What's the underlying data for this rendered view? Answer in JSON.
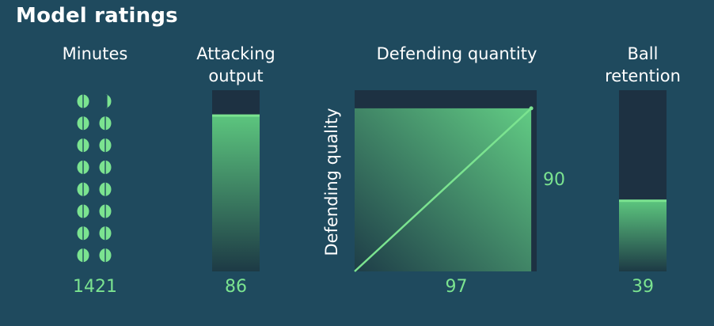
{
  "title": "Model ratings",
  "colors": {
    "background": "#1f4a5e",
    "panel": "#1d3142",
    "accent": "#7be390",
    "gradient_top": "#5cc57e",
    "gradient_bottom": "#1d3a45"
  },
  "chart_data": [
    {
      "type": "waffle",
      "header": "Minutes",
      "value_label": "1421",
      "value": 1421,
      "dot_count_full": 15,
      "dot_partial_fraction": 0.33
    },
    {
      "type": "bar",
      "header_lines": [
        "Attacking",
        "output"
      ],
      "value_label": "86",
      "value": 86,
      "ylim": [
        0,
        100
      ]
    },
    {
      "type": "area",
      "header": "Defending quantity",
      "ylabel": "Defending quality",
      "x_value_label": "97",
      "y_value_label": "90",
      "x": 97,
      "y": 90,
      "xlim": [
        0,
        100
      ],
      "ylim": [
        0,
        100
      ]
    },
    {
      "type": "bar",
      "header_lines": [
        "Ball",
        "retention"
      ],
      "value_label": "39",
      "value": 39,
      "ylim": [
        0,
        100
      ]
    }
  ]
}
